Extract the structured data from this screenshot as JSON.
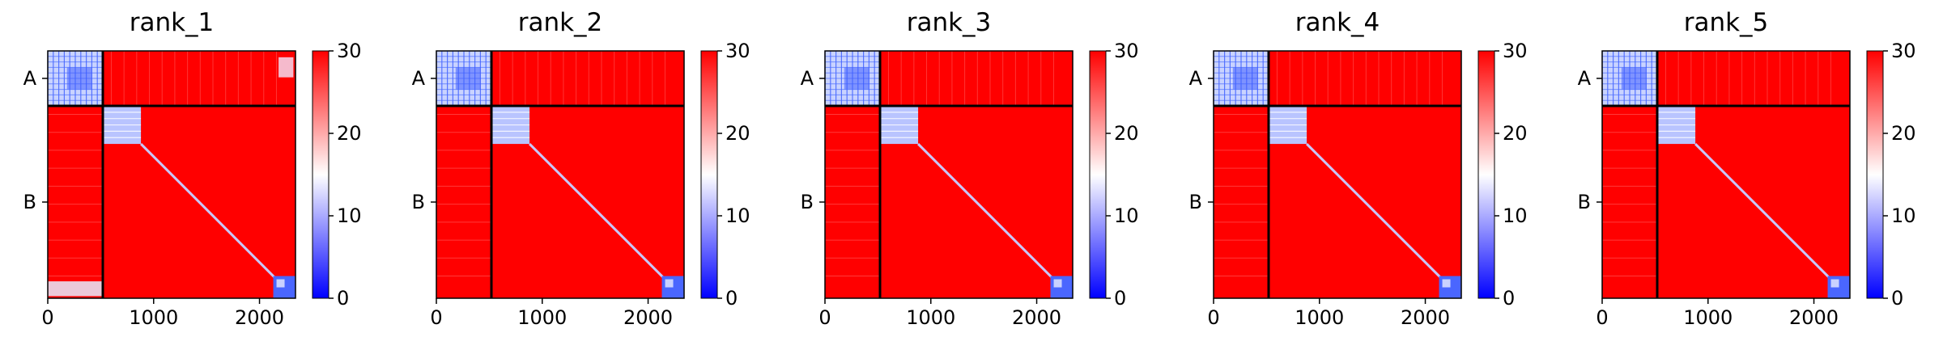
{
  "chart_data": [
    {
      "type": "heatmap",
      "title": "rank_1",
      "y_tick_labels": [
        "A",
        "B"
      ],
      "x_ticks": [
        0,
        1000,
        2000
      ],
      "xlim": [
        0,
        2340
      ],
      "colorbar": {
        "min": 0,
        "max": 30,
        "ticks": [
          0,
          10,
          20,
          30
        ],
        "colormap": [
          "#0000ff",
          "#ffffff",
          "#ff0000"
        ]
      },
      "segment_boundaries": [
        520
      ],
      "chain_lengths": {
        "A": 520,
        "B": 1820
      },
      "notable": "off-diagonal blue/white contacts between B C-terminal region and A"
    },
    {
      "type": "heatmap",
      "title": "rank_2",
      "y_tick_labels": [
        "A",
        "B"
      ],
      "x_ticks": [
        0,
        1000,
        2000
      ],
      "xlim": [
        0,
        2340
      ],
      "colorbar": {
        "min": 0,
        "max": 30,
        "ticks": [
          0,
          10,
          20,
          30
        ],
        "colormap": [
          "#0000ff",
          "#ffffff",
          "#ff0000"
        ]
      },
      "segment_boundaries": [
        520
      ],
      "chain_lengths": {
        "A": 520,
        "B": 1820
      }
    },
    {
      "type": "heatmap",
      "title": "rank_3",
      "y_tick_labels": [
        "A",
        "B"
      ],
      "x_ticks": [
        0,
        1000,
        2000
      ],
      "xlim": [
        0,
        2340
      ],
      "colorbar": {
        "min": 0,
        "max": 30,
        "ticks": [
          0,
          10,
          20,
          30
        ],
        "colormap": [
          "#0000ff",
          "#ffffff",
          "#ff0000"
        ]
      },
      "segment_boundaries": [
        520
      ],
      "chain_lengths": {
        "A": 520,
        "B": 1820
      }
    },
    {
      "type": "heatmap",
      "title": "rank_4",
      "y_tick_labels": [
        "A",
        "B"
      ],
      "x_ticks": [
        0,
        1000,
        2000
      ],
      "xlim": [
        0,
        2340
      ],
      "colorbar": {
        "min": 0,
        "max": 30,
        "ticks": [
          0,
          10,
          20,
          30
        ],
        "colormap": [
          "#0000ff",
          "#ffffff",
          "#ff0000"
        ]
      },
      "segment_boundaries": [
        520
      ],
      "chain_lengths": {
        "A": 520,
        "B": 1820
      }
    },
    {
      "type": "heatmap",
      "title": "rank_5",
      "y_tick_labels": [
        "A",
        "B"
      ],
      "x_ticks": [
        0,
        1000,
        2000
      ],
      "xlim": [
        0,
        2340
      ],
      "colorbar": {
        "min": 0,
        "max": 30,
        "ticks": [
          0,
          10,
          20,
          30
        ],
        "colormap": [
          "#0000ff",
          "#ffffff",
          "#ff0000"
        ]
      },
      "segment_boundaries": [
        520
      ],
      "chain_lengths": {
        "A": 520,
        "B": 1820
      }
    }
  ]
}
